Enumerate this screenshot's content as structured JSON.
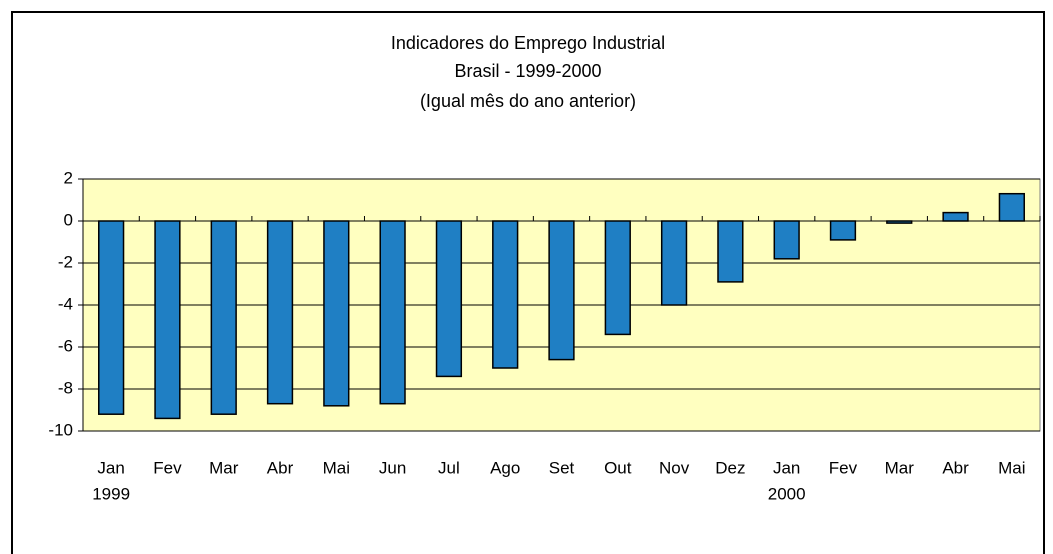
{
  "chart_data": {
    "type": "bar",
    "title": [
      "Indicadores do Emprego Industrial",
      "Brasil - 1999-2000",
      "(Igual mês do ano anterior)"
    ],
    "categories": [
      "Jan",
      "Fev",
      "Mar",
      "Abr",
      "Mai",
      "Jun",
      "Jul",
      "Ago",
      "Set",
      "Out",
      "Nov",
      "Dez",
      "Jan",
      "Fev",
      "Mar",
      "Abr",
      "Mai"
    ],
    "category_groups": [
      {
        "label": "1999",
        "index": 0
      },
      {
        "label": "2000",
        "index": 12
      }
    ],
    "values": [
      -9.2,
      -9.4,
      -9.2,
      -8.7,
      -8.8,
      -8.7,
      -7.4,
      -7.0,
      -6.6,
      -5.4,
      -4.0,
      -2.9,
      -1.8,
      -0.9,
      -0.1,
      0.4,
      1.3
    ],
    "color": "#1f7fc4",
    "plot_background": "#ffffc0",
    "ylim": [
      -10,
      2
    ],
    "yticks": [
      -10,
      -8,
      -6,
      -4,
      -2,
      0,
      2
    ],
    "grid": true
  }
}
